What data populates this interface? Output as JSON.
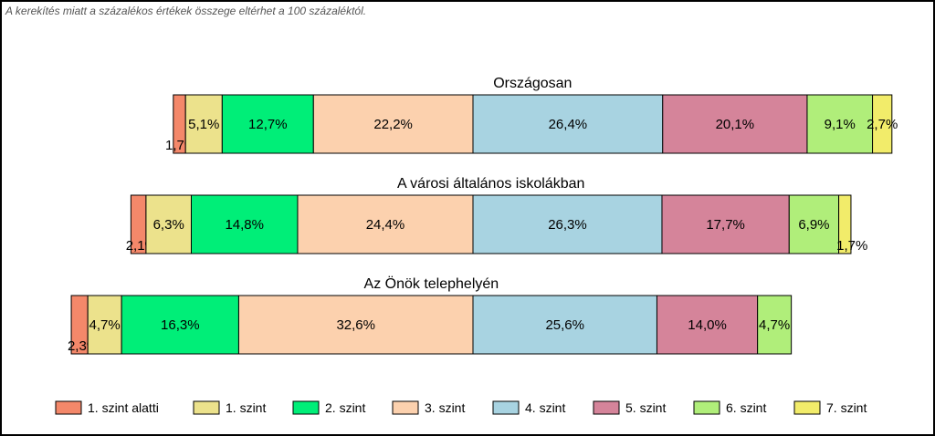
{
  "note": "A kerekítés miatt a  százalékos értékek összege eltérhet a 100 százaléktól.",
  "chart_data": {
    "type": "bar",
    "orientation": "horizontal",
    "stacked": true,
    "grid": false,
    "legend_position": "bottom",
    "series_names": [
      "1. szint alatti",
      "1. szint",
      "2. szint",
      "3. szint",
      "4. szint",
      "5. szint",
      "6. szint",
      "7. szint"
    ],
    "colors": [
      "#f4886a",
      "#ece28c",
      "#00ee78",
      "#fcd1ae",
      "#a8d3e1",
      "#d5849a",
      "#b0ee7a",
      "#f2ec6a"
    ],
    "anchor_series_index": 4,
    "anchor_value": 50,
    "bars": [
      {
        "title": "Országosan",
        "values": [
          1.7,
          5.1,
          12.7,
          22.2,
          26.4,
          20.1,
          9.1,
          2.7
        ],
        "labels": [
          "1,7%",
          "5,1%",
          "12,7%",
          "22,2%",
          "26,4%",
          "20,1%",
          "9,1%",
          "2,7%"
        ]
      },
      {
        "title": "A városi általános iskolákban",
        "values": [
          2.1,
          6.3,
          14.8,
          24.4,
          26.3,
          17.7,
          6.9,
          1.7
        ],
        "labels": [
          "2,1%",
          "6,3%",
          "14,8%",
          "24,4%",
          "26,3%",
          "17,7%",
          "6,9%",
          "1,7%"
        ]
      },
      {
        "title": "Az Önök telephelyén",
        "values": [
          2.3,
          4.7,
          16.3,
          32.6,
          25.6,
          14.0,
          4.7
        ],
        "labels": [
          "2,3%",
          "4,7%",
          "16,3%",
          "32,6%",
          "25,6%",
          "14,0%",
          "4,7%"
        ]
      }
    ]
  }
}
